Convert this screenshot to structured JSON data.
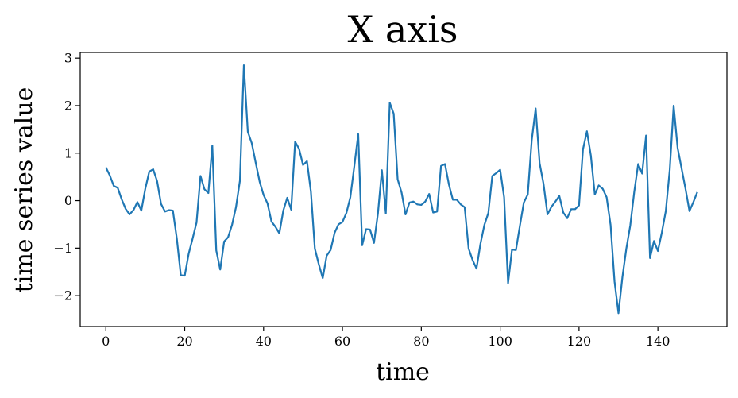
{
  "chart_data": {
    "type": "line",
    "title": "X axis",
    "xlabel": "time",
    "ylabel": "time series value",
    "xlim": [
      -6.5,
      157.5
    ],
    "ylim": [
      -2.65,
      3.12
    ],
    "x_ticks": [
      0,
      20,
      40,
      60,
      80,
      100,
      120,
      140
    ],
    "y_ticks": [
      -2,
      -1,
      0,
      1,
      2,
      3
    ],
    "grid": false,
    "line_color": "#1f77b4",
    "series": [
      {
        "x_start": 0,
        "x_step": 1,
        "values": [
          0.7,
          0.53,
          0.31,
          0.27,
          0.03,
          -0.17,
          -0.29,
          -0.2,
          -0.03,
          -0.21,
          0.25,
          0.61,
          0.66,
          0.41,
          -0.07,
          -0.23,
          -0.2,
          -0.21,
          -0.8,
          -1.57,
          -1.58,
          -1.12,
          -0.8,
          -0.46,
          0.52,
          0.24,
          0.16,
          1.16,
          -1.05,
          -1.45,
          -0.86,
          -0.77,
          -0.51,
          -0.14,
          0.42,
          2.85,
          1.45,
          1.21,
          0.8,
          0.4,
          0.12,
          -0.06,
          -0.44,
          -0.55,
          -0.69,
          -0.21,
          0.06,
          -0.19,
          1.24,
          1.09,
          0.75,
          0.83,
          0.19,
          -1.01,
          -1.34,
          -1.63,
          -1.16,
          -1.04,
          -0.68,
          -0.5,
          -0.45,
          -0.26,
          0.07,
          0.72,
          1.4,
          -0.94,
          -0.6,
          -0.61,
          -0.89,
          -0.27,
          0.64,
          -0.27,
          2.06,
          1.83,
          0.45,
          0.17,
          -0.29,
          -0.04,
          -0.02,
          -0.08,
          -0.09,
          -0.02,
          0.14,
          -0.25,
          -0.23,
          0.73,
          0.77,
          0.34,
          0.02,
          0.02,
          -0.08,
          -0.14,
          -1.01,
          -1.25,
          -1.43,
          -0.91,
          -0.51,
          -0.26,
          0.52,
          0.58,
          0.65,
          0.07,
          -1.74,
          -1.03,
          -1.04,
          -0.53,
          -0.04,
          0.13,
          1.27,
          1.94,
          0.79,
          0.35,
          -0.29,
          -0.13,
          -0.02,
          0.1,
          -0.25,
          -0.37,
          -0.18,
          -0.18,
          -0.1,
          1.08,
          1.46,
          0.95,
          0.13,
          0.32,
          0.25,
          0.07,
          -0.51,
          -1.7,
          -2.37,
          -1.61,
          -1.01,
          -0.52,
          0.18,
          0.77,
          0.57,
          1.37,
          -1.21,
          -0.85,
          -1.06,
          -0.67,
          -0.22,
          0.64,
          2.0,
          1.11,
          0.68,
          0.25,
          -0.22,
          -0.03,
          0.18
        ]
      }
    ]
  }
}
